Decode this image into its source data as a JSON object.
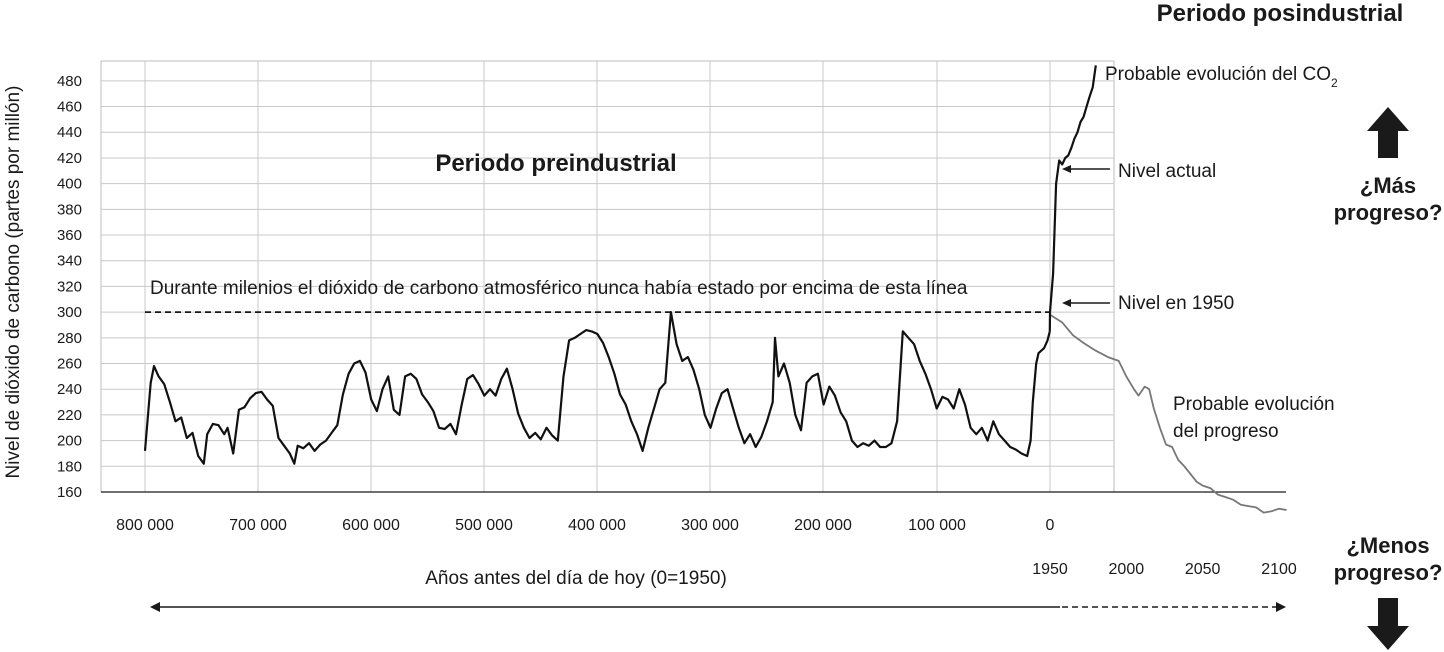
{
  "chart_data": {
    "type": "line",
    "title": "Periodo posindustrial",
    "subtitle": "Periodo preindustrial",
    "ylabel": "Nivel de dióxido de carbono (partes por millón)",
    "xlabel": "Años antes del día de hoy (0=1950)",
    "ylim": [
      160,
      490
    ],
    "yticks": [
      160,
      180,
      200,
      220,
      240,
      260,
      280,
      300,
      320,
      340,
      360,
      380,
      400,
      420,
      440,
      460,
      480
    ],
    "xticks_past": [
      "800 000",
      "700 000",
      "600 000",
      "500 000",
      "400 000",
      "300 000",
      "200 000",
      "100 000",
      "0"
    ],
    "xticks_future": [
      "1950",
      "2000",
      "2050",
      "2100"
    ],
    "grid": true,
    "reference_line": {
      "value": 300,
      "label": "Durante milenios el dióxido de carbono atmosférico nunca había estado por encima de esta línea"
    },
    "series": [
      {
        "name": "",
        "color": "#111111",
        "unit_x": "years before present (kyr)",
        "points": [
          [
            800,
            192
          ],
          [
            795,
            245
          ],
          [
            792,
            258
          ],
          [
            788,
            250
          ],
          [
            783,
            244
          ],
          [
            778,
            230
          ],
          [
            773,
            215
          ],
          [
            768,
            218
          ],
          [
            763,
            202
          ],
          [
            758,
            206
          ],
          [
            753,
            188
          ],
          [
            748,
            182
          ],
          [
            745,
            205
          ],
          [
            740,
            213
          ],
          [
            735,
            212
          ],
          [
            730,
            205
          ],
          [
            727,
            210
          ],
          [
            722,
            190
          ],
          [
            717,
            224
          ],
          [
            712,
            226
          ],
          [
            707,
            233
          ],
          [
            702,
            237
          ],
          [
            697,
            238
          ],
          [
            692,
            232
          ],
          [
            687,
            227
          ],
          [
            682,
            202
          ],
          [
            677,
            196
          ],
          [
            672,
            190
          ],
          [
            668,
            182
          ],
          [
            665,
            196
          ],
          [
            660,
            194
          ],
          [
            655,
            198
          ],
          [
            650,
            192
          ],
          [
            645,
            197
          ],
          [
            640,
            200
          ],
          [
            635,
            206
          ],
          [
            630,
            212
          ],
          [
            625,
            236
          ],
          [
            620,
            252
          ],
          [
            615,
            260
          ],
          [
            610,
            262
          ],
          [
            605,
            253
          ],
          [
            600,
            232
          ],
          [
            595,
            223
          ],
          [
            590,
            240
          ],
          [
            585,
            250
          ],
          [
            580,
            224
          ],
          [
            575,
            220
          ],
          [
            570,
            250
          ],
          [
            565,
            252
          ],
          [
            560,
            248
          ],
          [
            555,
            236
          ],
          [
            550,
            230
          ],
          [
            545,
            223
          ],
          [
            540,
            210
          ],
          [
            535,
            209
          ],
          [
            530,
            213
          ],
          [
            525,
            205
          ],
          [
            520,
            228
          ],
          [
            515,
            248
          ],
          [
            510,
            251
          ],
          [
            505,
            244
          ],
          [
            500,
            235
          ],
          [
            495,
            240
          ],
          [
            490,
            235
          ],
          [
            485,
            248
          ],
          [
            480,
            256
          ],
          [
            475,
            240
          ],
          [
            470,
            221
          ],
          [
            465,
            210
          ],
          [
            460,
            202
          ],
          [
            455,
            206
          ],
          [
            450,
            201
          ],
          [
            445,
            210
          ],
          [
            440,
            204
          ],
          [
            435,
            200
          ],
          [
            430,
            250
          ],
          [
            425,
            278
          ],
          [
            420,
            280
          ],
          [
            415,
            283
          ],
          [
            410,
            286
          ],
          [
            405,
            285
          ],
          [
            400,
            283
          ],
          [
            395,
            276
          ],
          [
            390,
            265
          ],
          [
            385,
            252
          ],
          [
            380,
            236
          ],
          [
            375,
            228
          ],
          [
            370,
            215
          ],
          [
            365,
            205
          ],
          [
            360,
            192
          ],
          [
            355,
            210
          ],
          [
            350,
            225
          ],
          [
            345,
            240
          ],
          [
            340,
            245
          ],
          [
            335,
            300
          ],
          [
            330,
            275
          ],
          [
            325,
            262
          ],
          [
            320,
            265
          ],
          [
            315,
            255
          ],
          [
            310,
            240
          ],
          [
            305,
            220
          ],
          [
            300,
            210
          ],
          [
            295,
            225
          ],
          [
            290,
            237
          ],
          [
            285,
            240
          ],
          [
            280,
            225
          ],
          [
            275,
            210
          ],
          [
            270,
            198
          ],
          [
            265,
            205
          ],
          [
            260,
            195
          ],
          [
            255,
            203
          ],
          [
            250,
            215
          ],
          [
            245,
            230
          ],
          [
            243,
            280
          ],
          [
            240,
            250
          ],
          [
            235,
            260
          ],
          [
            230,
            245
          ],
          [
            225,
            220
          ],
          [
            220,
            208
          ],
          [
            215,
            245
          ],
          [
            210,
            250
          ],
          [
            205,
            252
          ],
          [
            200,
            228
          ],
          [
            195,
            242
          ],
          [
            190,
            235
          ],
          [
            185,
            222
          ],
          [
            180,
            215
          ],
          [
            175,
            200
          ],
          [
            170,
            195
          ],
          [
            165,
            198
          ],
          [
            160,
            196
          ],
          [
            155,
            200
          ],
          [
            150,
            195
          ],
          [
            145,
            195
          ],
          [
            140,
            198
          ],
          [
            135,
            215
          ],
          [
            130,
            285
          ],
          [
            125,
            280
          ],
          [
            120,
            275
          ],
          [
            115,
            262
          ],
          [
            110,
            252
          ],
          [
            105,
            240
          ],
          [
            100,
            225
          ],
          [
            95,
            234
          ],
          [
            90,
            232
          ],
          [
            85,
            225
          ],
          [
            80,
            240
          ],
          [
            75,
            228
          ],
          [
            70,
            210
          ],
          [
            65,
            205
          ],
          [
            60,
            210
          ],
          [
            55,
            200
          ],
          [
            50,
            215
          ],
          [
            45,
            205
          ],
          [
            40,
            200
          ],
          [
            35,
            195
          ],
          [
            30,
            193
          ],
          [
            25,
            190
          ],
          [
            20,
            188
          ],
          [
            17,
            200
          ],
          [
            15,
            230
          ],
          [
            12,
            260
          ],
          [
            10,
            268
          ],
          [
            5,
            272
          ],
          [
            2,
            278
          ],
          [
            0,
            285
          ]
        ]
      },
      {
        "name": "",
        "color": "#111111",
        "unit_x": "year",
        "points": [
          [
            1950,
            300
          ],
          [
            1952,
            330
          ],
          [
            1954,
            400
          ],
          [
            1956,
            418
          ],
          [
            1958,
            415
          ],
          [
            1960,
            420
          ],
          [
            1962,
            422
          ],
          [
            1964,
            428
          ],
          [
            1966,
            435
          ],
          [
            1968,
            440
          ],
          [
            1970,
            448
          ],
          [
            1972,
            452
          ],
          [
            1974,
            460
          ],
          [
            1976,
            468
          ],
          [
            1978,
            475
          ],
          [
            1980,
            492
          ]
        ]
      },
      {
        "name": "",
        "color": "#777777",
        "unit_x": "year",
        "points": [
          [
            1950,
            298
          ],
          [
            1958,
            292
          ],
          [
            1965,
            282
          ],
          [
            1972,
            276
          ],
          [
            1980,
            270
          ],
          [
            1988,
            265
          ],
          [
            1995,
            262
          ],
          [
            2000,
            250
          ],
          [
            2005,
            240
          ],
          [
            2008,
            235
          ],
          [
            2012,
            242
          ],
          [
            2015,
            240
          ],
          [
            2018,
            225
          ],
          [
            2022,
            210
          ],
          [
            2026,
            197
          ],
          [
            2030,
            195
          ],
          [
            2034,
            185
          ],
          [
            2038,
            180
          ],
          [
            2042,
            174
          ],
          [
            2046,
            168
          ],
          [
            2050,
            165
          ],
          [
            2055,
            163
          ],
          [
            2060,
            158
          ],
          [
            2065,
            156
          ],
          [
            2070,
            154
          ],
          [
            2075,
            150
          ],
          [
            2080,
            149
          ],
          [
            2085,
            148
          ],
          [
            2090,
            144
          ],
          [
            2095,
            145
          ],
          [
            2100,
            147
          ],
          [
            2105,
            146
          ]
        ]
      }
    ],
    "annotations": {
      "probable_co2": "Probable evolución del CO",
      "probable_co2_sub": "2",
      "nivel_actual": "Nivel actual",
      "nivel_1950": "Nivel en 1950",
      "probable_progreso_1": "Probable evolución",
      "probable_progreso_2": "del progreso",
      "mas_progreso_1": "¿Más",
      "mas_progreso_2": "progreso?",
      "menos_progreso_1": "¿Menos",
      "menos_progreso_2": "progreso?"
    }
  }
}
